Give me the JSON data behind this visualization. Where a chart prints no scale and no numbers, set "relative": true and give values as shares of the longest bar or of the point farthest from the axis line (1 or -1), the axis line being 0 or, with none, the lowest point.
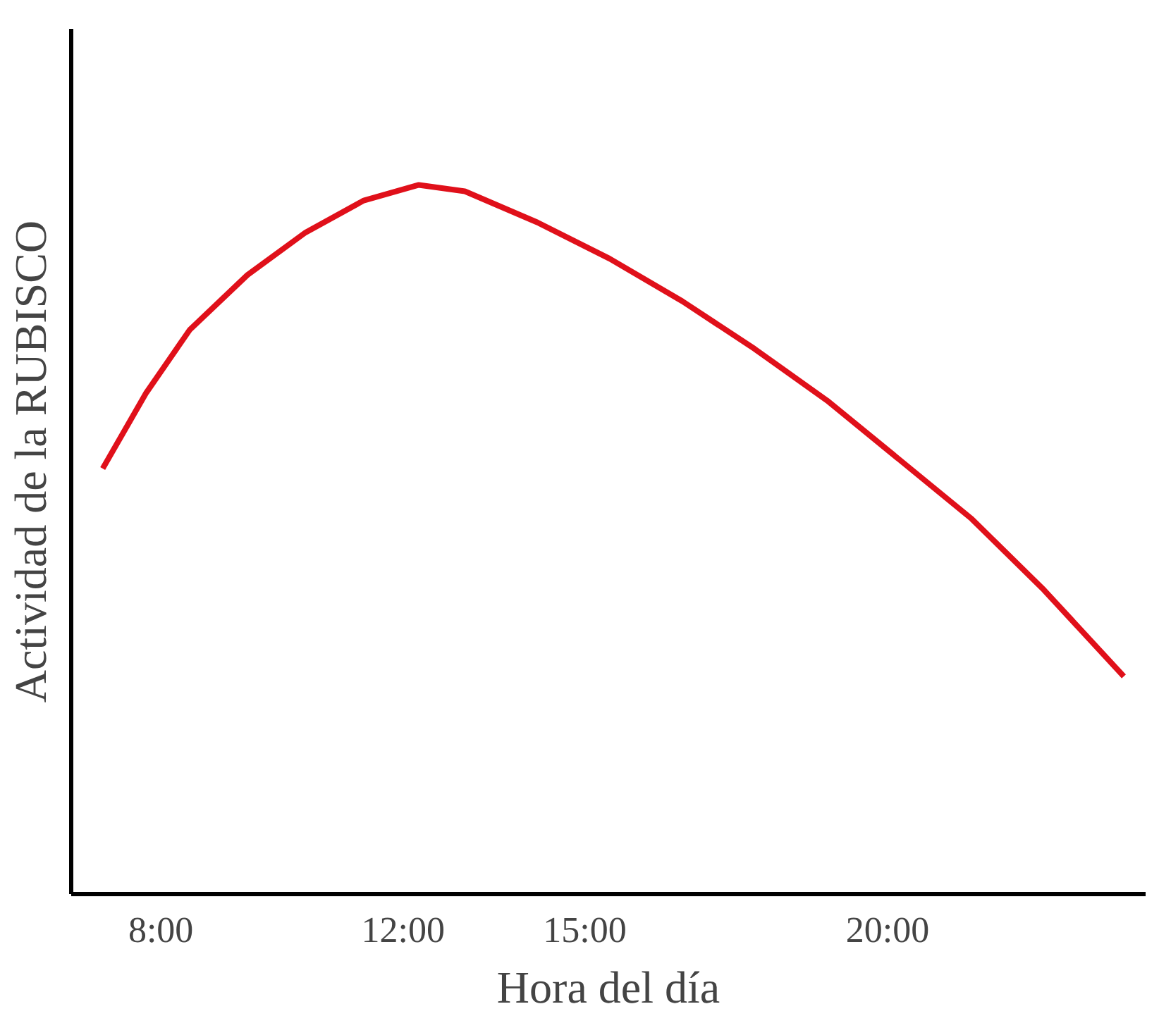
{
  "chart_data": {
    "type": "line",
    "relative": true,
    "xlabel": "Hora del día",
    "ylabel": "Actividad de la RUBISCO",
    "x": [
      7.04,
      7.76,
      8.48,
      9.43,
      10.39,
      11.35,
      12.26,
      13.02,
      14.22,
      15.41,
      16.61,
      17.8,
      19.0,
      20.19,
      21.39,
      22.58,
      23.9
    ],
    "series": [
      {
        "color": "#e0101a",
        "values": [
          0.6,
          0.707,
          0.796,
          0.873,
          0.933,
          0.978,
          1.0,
          0.991,
          0.947,
          0.896,
          0.836,
          0.769,
          0.696,
          0.613,
          0.529,
          0.429,
          0.307
        ]
      }
    ],
    "xlim": [
      6.52,
      24.26
    ],
    "xticks": [
      {
        "value": 8,
        "label": "8:00"
      },
      {
        "value": 12,
        "label": "12:00"
      },
      {
        "value": 15,
        "label": "15:00"
      },
      {
        "value": 20,
        "label": "20:00"
      }
    ],
    "tick_labels": "x",
    "marker": "none",
    "line_style": "solid"
  }
}
